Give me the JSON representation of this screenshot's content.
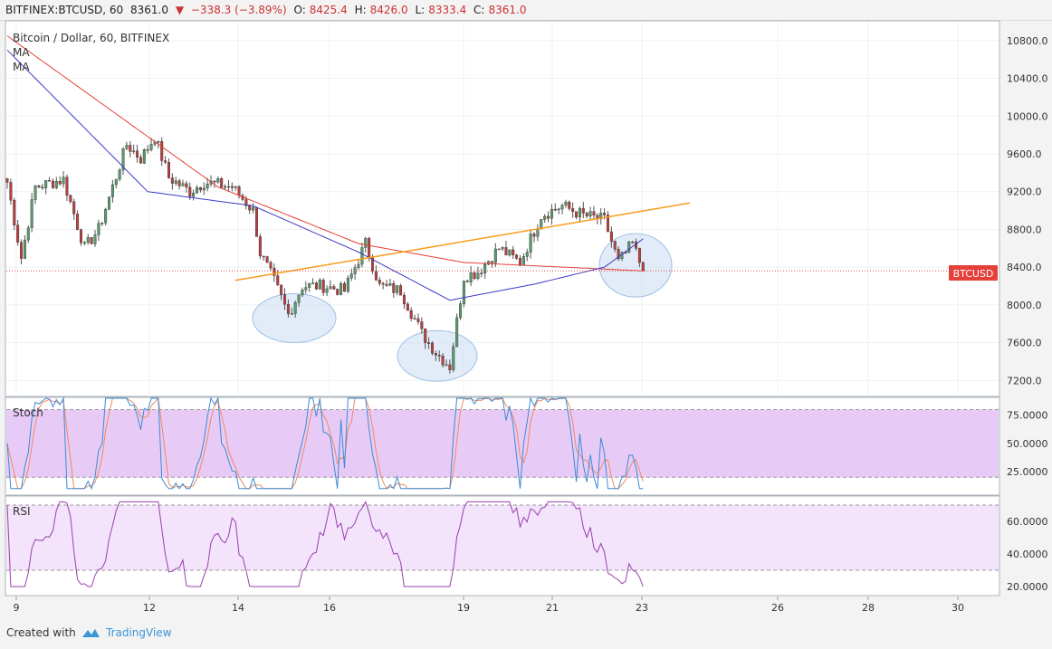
{
  "header": {
    "symbol": "BITFINEX:BTCUSD, 60",
    "last": "8361.0",
    "change": "−338.3 (−3.89%)",
    "open_label": "O:",
    "open": "8425.4",
    "high_label": "H:",
    "high": "8426.0",
    "low_label": "L:",
    "low": "8333.4",
    "close_label": "C:",
    "close": "8361.0",
    "down_color": "#cc3333"
  },
  "main_pane": {
    "title": "Bitcoin / Dollar, 60, BITFINEX",
    "ma_labels": [
      "MA",
      "MA"
    ],
    "price_tag": "BTCUSD",
    "price_axis": [
      "10800.0",
      "10400.0",
      "10000.0",
      "9600.0",
      "9200.0",
      "8800.0",
      "8400.0",
      "8000.0",
      "7600.0",
      "7200.0"
    ]
  },
  "stoch_pane": {
    "title": "Stoch",
    "axis": [
      "75.0000",
      "50.0000",
      "25.0000"
    ]
  },
  "rsi_pane": {
    "title": "RSI",
    "axis": [
      "60.0000",
      "40.0000",
      "20.0000"
    ]
  },
  "time_axis": [
    "9",
    "12",
    "14",
    "16",
    "19",
    "21",
    "23",
    "26",
    "28",
    "30"
  ],
  "footer": {
    "created_with": "Created with",
    "brand": "TradingView"
  },
  "chart_data": {
    "type": "candlestick",
    "title": "Bitcoin / Dollar, 60, BITFINEX",
    "interval": "60",
    "ylim": [
      7050,
      11000
    ],
    "x_ticks": [
      "9",
      "12",
      "14",
      "16",
      "19",
      "21",
      "23",
      "26",
      "28",
      "30"
    ],
    "last_price": 8361.0,
    "colors": {
      "up": "#5b9b6e",
      "down": "#b9403e",
      "ma_slow": "#e5403a",
      "ma_fast": "#3a3ac9",
      "trendline": "#f89c1c"
    },
    "price_anchors": [
      [
        0,
        9300
      ],
      [
        4,
        8500
      ],
      [
        8,
        9250
      ],
      [
        16,
        9330
      ],
      [
        22,
        8600
      ],
      [
        26,
        8800
      ],
      [
        34,
        9700
      ],
      [
        38,
        9550
      ],
      [
        42,
        9780
      ],
      [
        46,
        9350
      ],
      [
        52,
        9200
      ],
      [
        56,
        9300
      ],
      [
        64,
        9250
      ],
      [
        70,
        9000
      ],
      [
        72,
        8550
      ],
      [
        76,
        8250
      ],
      [
        80,
        7900
      ],
      [
        84,
        8200
      ],
      [
        90,
        8200
      ],
      [
        96,
        8150
      ],
      [
        102,
        8650
      ],
      [
        106,
        8200
      ],
      [
        112,
        8150
      ],
      [
        118,
        7700
      ],
      [
        122,
        7500
      ],
      [
        126,
        7350
      ],
      [
        130,
        8300
      ],
      [
        134,
        8350
      ],
      [
        140,
        8600
      ],
      [
        146,
        8450
      ],
      [
        152,
        8950
      ],
      [
        158,
        9050
      ],
      [
        164,
        8950
      ],
      [
        170,
        8900
      ],
      [
        174,
        8450
      ],
      [
        178,
        8650
      ],
      [
        181,
        8361
      ]
    ],
    "ma_slow": [
      [
        0,
        10850
      ],
      [
        60,
        9250
      ],
      [
        100,
        8650
      ],
      [
        130,
        8450
      ],
      [
        181,
        8361
      ]
    ],
    "ma_fast": [
      [
        0,
        10700
      ],
      [
        40,
        9200
      ],
      [
        70,
        9050
      ],
      [
        100,
        8560
      ],
      [
        126,
        8050
      ],
      [
        150,
        8220
      ],
      [
        170,
        8400
      ],
      [
        181,
        8700
      ]
    ],
    "trendline": [
      [
        8260,
        0.0
      ],
      [
        9080,
        1.0
      ]
    ],
    "stoch": {
      "upper": 80,
      "lower": 20,
      "axis": [
        75,
        50,
        25
      ],
      "ylim": [
        5,
        90
      ]
    },
    "rsi": {
      "upper": 70,
      "lower": 30,
      "axis": [
        60,
        40,
        20
      ],
      "ylim": [
        15,
        75
      ]
    }
  }
}
